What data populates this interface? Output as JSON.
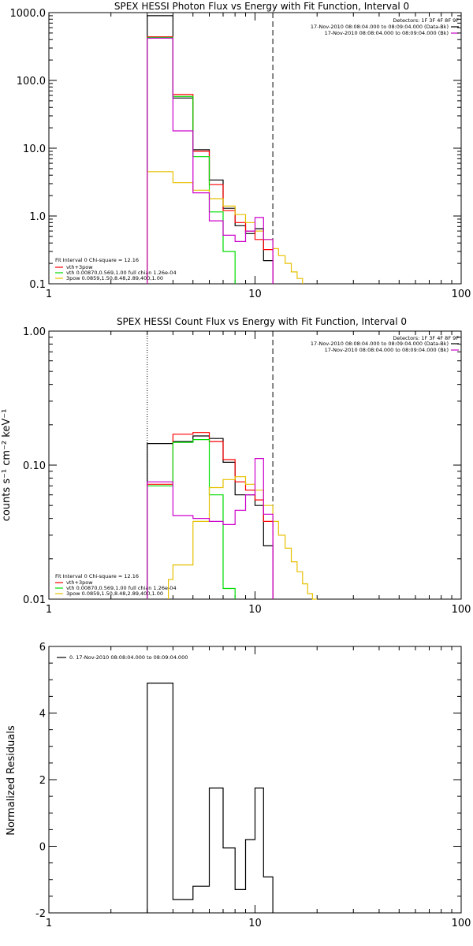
{
  "colors": {
    "data": "#000000",
    "vth_3pow": "#ff0000",
    "vth": "#00dd00",
    "3pow": "#e6c000",
    "bk": "#cc00cc",
    "background": "#ffffff"
  },
  "chart_data": [
    {
      "type": "line",
      "step": true,
      "title": "SPEX HESSI Photon Flux vs Energy with Fit Function, Interval 0",
      "xlabel": "",
      "ylabel": "",
      "xscale": "log",
      "yscale": "log",
      "xlim": [
        1,
        100
      ],
      "ylim": [
        0.1,
        1000
      ],
      "x_ticks": [
        "1",
        "10",
        "100"
      ],
      "y_ticks": [
        "0.1",
        "1.0",
        "10.0",
        "100.0",
        "1000.0"
      ],
      "vlines": [
        {
          "x": 12.2,
          "style": "dashed"
        }
      ],
      "detectors": "Detectors: 1F 3F 4F 8F 9F",
      "legend_top": [
        {
          "text": "17-Nov-2010 08:08:04.000 to 08:09:04.000 (Data-Bk)",
          "color": "#000000"
        },
        {
          "text": "17-Nov-2010 08:08:04.000 to 08:09:04.000 (Bk)",
          "color": "#cc00cc"
        }
      ],
      "fit_info": "Fit Interval 0   Chi-square = 12.16",
      "legend_bottom": [
        {
          "text": "vth+3pow",
          "color": "#ff0000"
        },
        {
          "text": "vth 0.00870,0.569,1.00  full chian 1.26e-04",
          "color": "#00dd00"
        },
        {
          "text": "3pow 0.0859,1.50,8.48,2.89,400,1.00",
          "color": "#e6c000"
        }
      ],
      "series": [
        {
          "key": "data",
          "color": "#000000",
          "edges": [
            3,
            4,
            5,
            6,
            7,
            8,
            9,
            10,
            11,
            12.2
          ],
          "values": [
            900,
            55,
            9.5,
            3.4,
            1.3,
            0.72,
            0.55,
            0.65,
            0.22
          ]
        },
        {
          "key": "vth_3pow",
          "color": "#ff0000",
          "edges": [
            3,
            4,
            5,
            6,
            7,
            8,
            9,
            10,
            11,
            12.2
          ],
          "values": [
            440,
            62,
            9,
            2.9,
            1.2,
            0.8,
            0.6,
            0.45,
            0.32
          ]
        },
        {
          "key": "vth",
          "color": "#00dd00",
          "edges": [
            3,
            4,
            5,
            6,
            7,
            8
          ],
          "values": [
            430,
            58,
            7.5,
            1.15,
            0.3
          ]
        },
        {
          "key": "3pow",
          "color": "#e6c000",
          "edges": [
            3,
            4,
            5,
            6,
            7,
            8,
            9,
            10,
            11,
            12.2,
            13,
            14,
            15,
            16,
            17
          ],
          "values": [
            4.5,
            3.1,
            2.4,
            1.8,
            1.4,
            1.05,
            0.8,
            0.6,
            0.45,
            0.33,
            0.26,
            0.2,
            0.15,
            0.12
          ]
        },
        {
          "key": "bk",
          "color": "#cc00cc",
          "edges": [
            3,
            4,
            5,
            6,
            7,
            8,
            9,
            10,
            11,
            12.2
          ],
          "values": [
            420,
            18,
            2.2,
            0.85,
            0.52,
            0.42,
            0.6,
            0.95,
            0.45
          ]
        }
      ]
    },
    {
      "type": "line",
      "step": true,
      "title": "SPEX HESSI Count Flux vs Energy with Fit Function, Interval 0",
      "xlabel": "",
      "ylabel": "counts s⁻¹ cm⁻² keV⁻¹",
      "xscale": "log",
      "yscale": "log",
      "xlim": [
        1,
        100
      ],
      "ylim": [
        0.01,
        1
      ],
      "x_ticks": [
        "1",
        "10",
        "100"
      ],
      "y_ticks": [
        "0.01",
        "0.10",
        "1.00"
      ],
      "vlines": [
        {
          "x": 3,
          "style": "dotted"
        },
        {
          "x": 12.2,
          "style": "dashed"
        }
      ],
      "detectors": "Detectors: 1F 3F 4F 8F 9F",
      "legend_top": [
        {
          "text": "17-Nov-2010 08:08:04.000 to 08:09:04.000 (Data-Bk)",
          "color": "#000000"
        },
        {
          "text": "17-Nov-2010 08:08:04.000 to 08:09:04.000 (Bk)",
          "color": "#cc00cc"
        }
      ],
      "fit_info": "Fit Interval 0   Chi-square = 12.16",
      "legend_bottom": [
        {
          "text": "vth+3pow",
          "color": "#ff0000"
        },
        {
          "text": "vth 0.00870,0.569,1.00  full chian 1.26e-04",
          "color": "#00dd00"
        },
        {
          "text": "3pow 0.0859,1.50,8.48,2.89,400,1.00",
          "color": "#e6c000"
        }
      ],
      "series": [
        {
          "key": "data",
          "color": "#000000",
          "edges": [
            3,
            4,
            5,
            6,
            7,
            8,
            9,
            10,
            11,
            12.2
          ],
          "values": [
            0.145,
            0.15,
            0.165,
            0.158,
            0.105,
            0.06,
            0.06,
            0.05,
            0.025
          ]
        },
        {
          "key": "vth_3pow",
          "color": "#ff0000",
          "edges": [
            3,
            4,
            5,
            6,
            7,
            8,
            9,
            10,
            11,
            12.2
          ],
          "values": [
            0.072,
            0.17,
            0.175,
            0.15,
            0.11,
            0.075,
            0.065,
            0.055,
            0.038
          ]
        },
        {
          "key": "vth",
          "color": "#00dd00",
          "edges": [
            3,
            4,
            5,
            6,
            7,
            8
          ],
          "values": [
            0.07,
            0.148,
            0.155,
            0.06,
            0.012
          ]
        },
        {
          "key": "3pow",
          "color": "#e6c000",
          "edges": [
            3.8,
            4,
            5,
            6,
            7,
            8,
            9,
            10,
            11,
            12.2,
            13,
            14,
            15,
            16,
            17,
            18,
            19,
            20
          ],
          "values": [
            0.014,
            0.018,
            0.038,
            0.068,
            0.078,
            0.082,
            0.072,
            0.065,
            0.05,
            0.038,
            0.03,
            0.024,
            0.019,
            0.016,
            0.013,
            0.011,
            0.01
          ]
        },
        {
          "key": "bk",
          "color": "#cc00cc",
          "edges": [
            3,
            4,
            5,
            6,
            7,
            8,
            9,
            10,
            11,
            12.2
          ],
          "values": [
            0.075,
            0.042,
            0.04,
            0.038,
            0.036,
            0.046,
            0.06,
            0.112,
            0.043
          ]
        }
      ]
    },
    {
      "type": "line",
      "step": true,
      "title": "",
      "xlabel": "",
      "ylabel": "Normalized Residuals",
      "xscale": "log",
      "yscale": "linear",
      "xlim": [
        1,
        100
      ],
      "ylim": [
        -2,
        6
      ],
      "x_ticks": [
        "1",
        "10",
        "100"
      ],
      "y_ticks": [
        "-2",
        "0",
        "2",
        "4",
        "6"
      ],
      "vlines": [],
      "legend_top": [
        {
          "text": "0. 17-Nov-2010 08:08:04.000 to 08:09:04.000",
          "color": "#000000"
        }
      ],
      "series": [
        {
          "key": "residuals",
          "color": "#000000",
          "edges": [
            3,
            4,
            5,
            6,
            7,
            8,
            9,
            10,
            11,
            12.2
          ],
          "values": [
            4.9,
            -1.6,
            -1.2,
            1.75,
            -0.05,
            -1.3,
            0.2,
            1.75,
            -0.92
          ]
        }
      ]
    }
  ]
}
